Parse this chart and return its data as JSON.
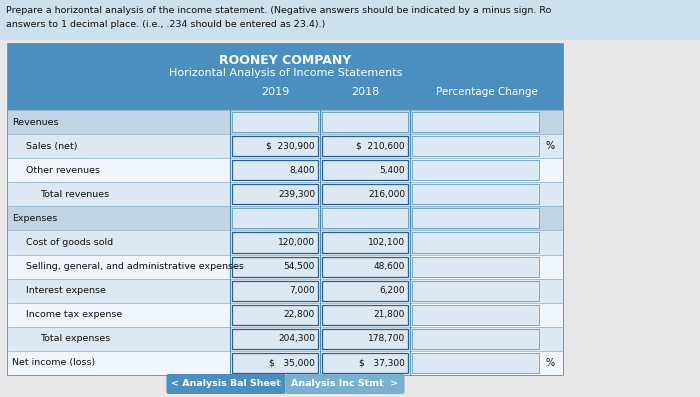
{
  "title1": "ROONEY COMPANY",
  "title2": "Horizontal Analysis of Income Statements",
  "header_bg": "#4a8fc0",
  "col_headers_2019": "2019",
  "col_headers_2018": "2018",
  "col_headers_pct": "Percentage Change",
  "rows": [
    {
      "label": "Revenues",
      "indent": 0,
      "val2019": "",
      "val2018": "",
      "pct": false,
      "section": true
    },
    {
      "label": "Sales (net)",
      "indent": 1,
      "val2019": "$  230,900",
      "val2018": "$  210,600",
      "pct": true,
      "section": false
    },
    {
      "label": "Other revenues",
      "indent": 1,
      "val2019": "8,400",
      "val2018": "5,400",
      "pct": false,
      "section": false
    },
    {
      "label": "Total revenues",
      "indent": 2,
      "val2019": "239,300",
      "val2018": "216,000",
      "pct": false,
      "section": false
    },
    {
      "label": "Expenses",
      "indent": 0,
      "val2019": "",
      "val2018": "",
      "pct": false,
      "section": true
    },
    {
      "label": "Cost of goods sold",
      "indent": 1,
      "val2019": "120,000",
      "val2018": "102,100",
      "pct": false,
      "section": false
    },
    {
      "label": "Selling, general, and administrative expenses",
      "indent": 1,
      "val2019": "54,500",
      "val2018": "48,600",
      "pct": false,
      "section": false
    },
    {
      "label": "Interest expense",
      "indent": 1,
      "val2019": "7,000",
      "val2018": "6,200",
      "pct": false,
      "section": false
    },
    {
      "label": "Income tax expense",
      "indent": 1,
      "val2019": "22,800",
      "val2018": "21,800",
      "pct": false,
      "section": false
    },
    {
      "label": "Total expenses",
      "indent": 2,
      "val2019": "204,300",
      "val2018": "178,700",
      "pct": false,
      "section": false
    },
    {
      "label": "Net income (loss)",
      "indent": 0,
      "val2019": "$   35,000",
      "val2018": "$   37,300",
      "pct": true,
      "section": false
    }
  ],
  "instr_line1": "Prepare a horizontal analysis of the income statement. (Negative answers should be indicated by a minus sign. Ro",
  "instr_line2": "answers to 1 decimal place. (i.e., .234 should be entered as 23.4).)",
  "instr_bg": "#cde0ee",
  "outer_bg": "#e8e8e8",
  "table_bg": "#ffffff",
  "header_blue": "#4a8fc0",
  "section_bg": "#c0d4e4",
  "row_bg_light": "#dce8f4",
  "row_bg_white": "#f0f6fc",
  "input_box_bg": "#dce8f4",
  "input_box_border": "#5090b8",
  "input_box_border_dark": "#2a6090",
  "divider_color": "#8ab0cc",
  "btn1_bg": "#4a8fc0",
  "btn1_text": "< Analysis Bal Sheet",
  "btn2_bg": "#7ab0d0",
  "btn2_text": "Analysis Inc Stmt  >",
  "btn_text_color": "#ffffff"
}
